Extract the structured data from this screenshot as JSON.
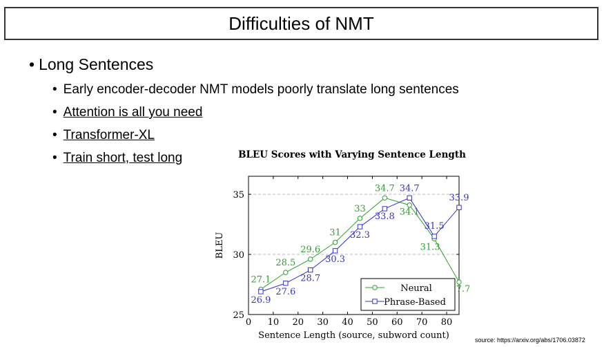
{
  "slide": {
    "title": "Difficulties of NMT",
    "bullet_main": "Long Sentences",
    "sub_bullets": [
      "Early encoder-decoder NMT models poorly translate long sentences",
      "Attention is all you need",
      "Transformer-XL",
      "Train short, test long"
    ],
    "bullet_glyph": "•",
    "source": "source: https://arxiv.org/abs/1706.03872"
  },
  "chart_data": {
    "type": "line",
    "title": "BLEU Scores with Varying Sentence Length",
    "xlabel": "Sentence Length (source, subword count)",
    "ylabel": "BLEU",
    "xlim": [
      0,
      85
    ],
    "ylim": [
      25,
      36.5
    ],
    "xticks": [
      0,
      10,
      20,
      30,
      40,
      50,
      60,
      70,
      80
    ],
    "yticks": [
      25,
      30,
      35
    ],
    "grid": "horizontal dashed at 30, 35",
    "legend_position": "bottom-right",
    "x": [
      5,
      15,
      25,
      35,
      45,
      55,
      65,
      75,
      85
    ],
    "series": [
      {
        "name": "Neural",
        "color": "#2ca02c",
        "marker": "circle",
        "values": [
          27.1,
          28.5,
          29.6,
          31,
          33,
          34.7,
          34.1,
          31.3,
          27.7
        ],
        "labels": [
          "27.1",
          "28.5",
          "29.6",
          "31",
          "33",
          "34.7",
          "34.1",
          "31.3",
          "27.7"
        ]
      },
      {
        "name": "Phrase-Based",
        "color": "#3333cc",
        "marker": "square",
        "values": [
          26.9,
          27.6,
          28.7,
          30.3,
          32.3,
          33.8,
          34.7,
          31.5,
          33.9
        ],
        "labels": [
          "26.9",
          "27.6",
          "28.7",
          "30.3",
          "32.3",
          "33.8",
          "34.7",
          "31.5",
          "33.9"
        ]
      }
    ]
  }
}
